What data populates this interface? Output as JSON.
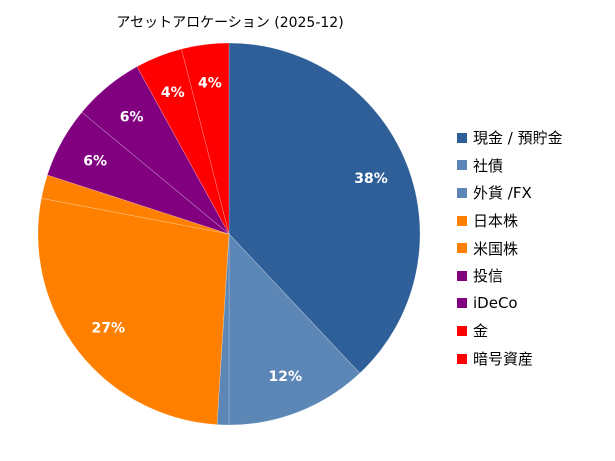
{
  "chart_data": {
    "type": "pie",
    "title": "アセットアロケーション (2025-12)",
    "start": "top",
    "direction": "clockwise",
    "legend_position": "right",
    "slices": [
      {
        "label": "現金 / 預貯金",
        "value": 38,
        "data_label": "38%",
        "color": "#2E5F99"
      },
      {
        "label": "社債",
        "value": 12,
        "data_label": "12%",
        "color": "#5B86B5"
      },
      {
        "label": "外貨 /FX",
        "value": 1,
        "data_label": "",
        "color": "#5B86B5"
      },
      {
        "label": "日本株",
        "value": 27,
        "data_label": "27%",
        "color": "#FF8000"
      },
      {
        "label": "米国株",
        "value": 2,
        "data_label": "",
        "color": "#FF8000"
      },
      {
        "label": "投信",
        "value": 6,
        "data_label": "6%",
        "color": "#800080"
      },
      {
        "label": "iDeCo",
        "value": 6,
        "data_label": "6%",
        "color": "#800080"
      },
      {
        "label": "金",
        "value": 4,
        "data_label": "4%",
        "color": "#FF0000"
      },
      {
        "label": "暗号資産",
        "value": 4,
        "data_label": "4%",
        "color": "#FF0000"
      }
    ]
  }
}
